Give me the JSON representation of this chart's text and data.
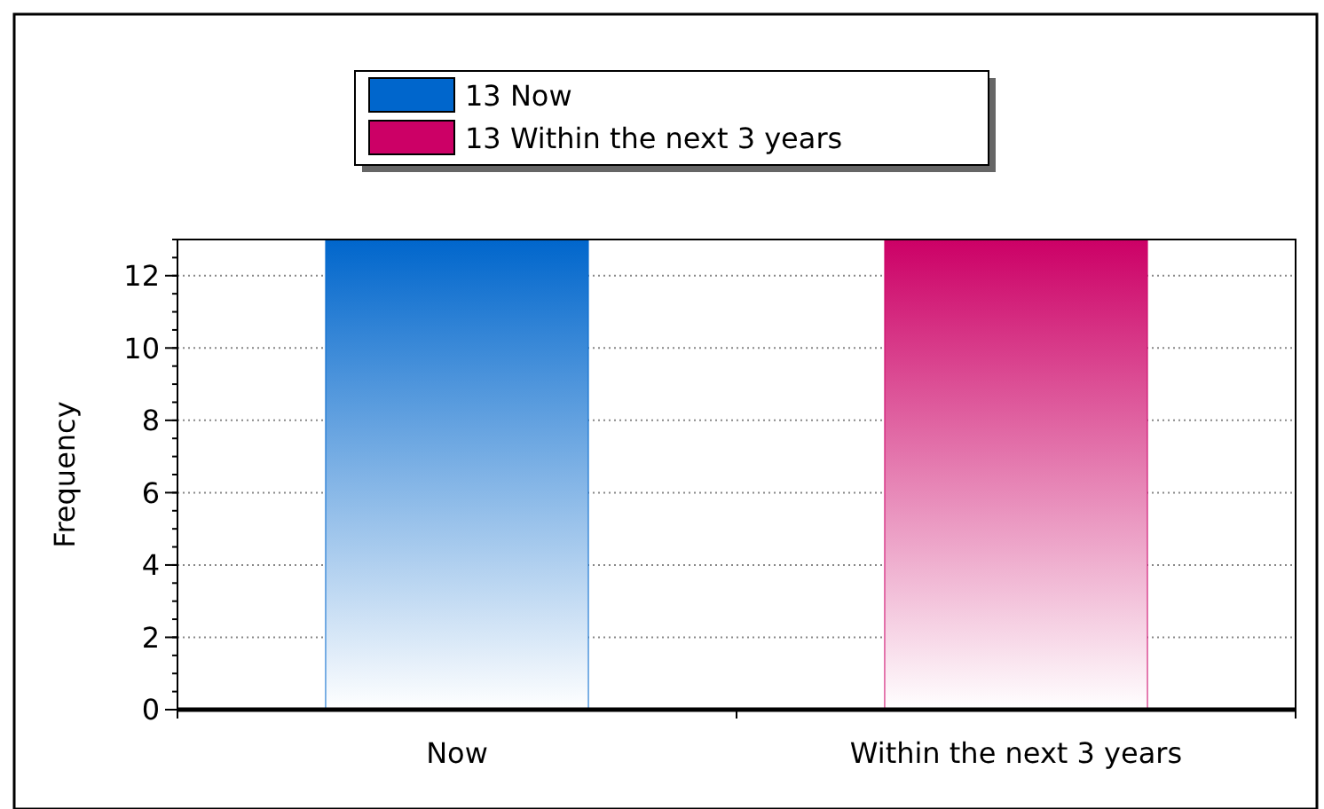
{
  "chart_data": {
    "type": "bar",
    "ylabel": "Frequency",
    "categories": [
      "Now",
      "Within the next 3 years"
    ],
    "series": [
      {
        "name": "13 Now",
        "color": "#0066cc",
        "values": [
          13,
          null
        ]
      },
      {
        "name": "13 Within the next 3 years",
        "color": "#cc0066",
        "values": [
          null,
          13
        ]
      }
    ],
    "ylim": [
      0,
      13
    ],
    "yticks": [
      0,
      2,
      4,
      6,
      8,
      10,
      12
    ],
    "grid": "y",
    "legend": "top"
  }
}
